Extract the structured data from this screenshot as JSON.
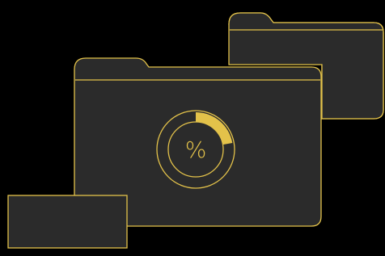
{
  "gauge": {
    "symbol": "%"
  }
}
